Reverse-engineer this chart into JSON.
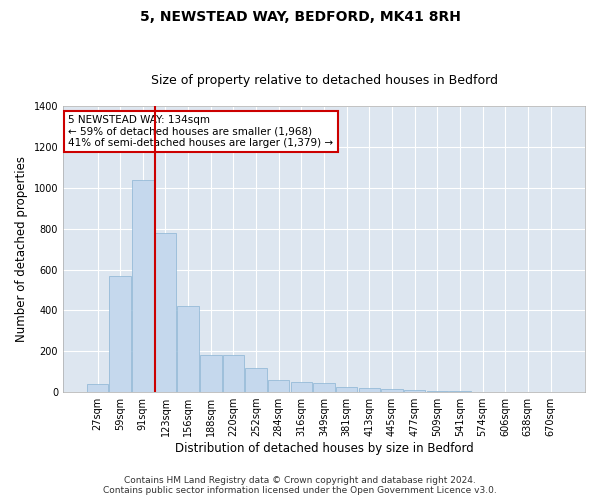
{
  "title": "5, NEWSTEAD WAY, BEDFORD, MK41 8RH",
  "subtitle": "Size of property relative to detached houses in Bedford",
  "xlabel": "Distribution of detached houses by size in Bedford",
  "ylabel": "Number of detached properties",
  "categories": [
    "27sqm",
    "59sqm",
    "91sqm",
    "123sqm",
    "156sqm",
    "188sqm",
    "220sqm",
    "252sqm",
    "284sqm",
    "316sqm",
    "349sqm",
    "381sqm",
    "413sqm",
    "445sqm",
    "477sqm",
    "509sqm",
    "541sqm",
    "574sqm",
    "606sqm",
    "638sqm",
    "670sqm"
  ],
  "values": [
    40,
    570,
    1040,
    780,
    420,
    180,
    180,
    120,
    60,
    50,
    45,
    25,
    22,
    15,
    8,
    5,
    3,
    2,
    1,
    1,
    0
  ],
  "bar_color": "#c5d8ed",
  "bar_edge_color": "#8ab4d4",
  "highlight_line_color": "#cc0000",
  "annotation_text": "5 NEWSTEAD WAY: 134sqm\n← 59% of detached houses are smaller (1,968)\n41% of semi-detached houses are larger (1,379) →",
  "annotation_box_color": "#ffffff",
  "annotation_box_edge": "#cc0000",
  "ylim": [
    0,
    1400
  ],
  "yticks": [
    0,
    200,
    400,
    600,
    800,
    1000,
    1200,
    1400
  ],
  "footer_line1": "Contains HM Land Registry data © Crown copyright and database right 2024.",
  "footer_line2": "Contains public sector information licensed under the Open Government Licence v3.0.",
  "bg_color": "#ffffff",
  "plot_bg_color": "#dde6f0",
  "grid_color": "#ffffff",
  "title_fontsize": 10,
  "subtitle_fontsize": 9,
  "axis_label_fontsize": 8.5,
  "tick_fontsize": 7,
  "footer_fontsize": 6.5,
  "annotation_fontsize": 7.5
}
